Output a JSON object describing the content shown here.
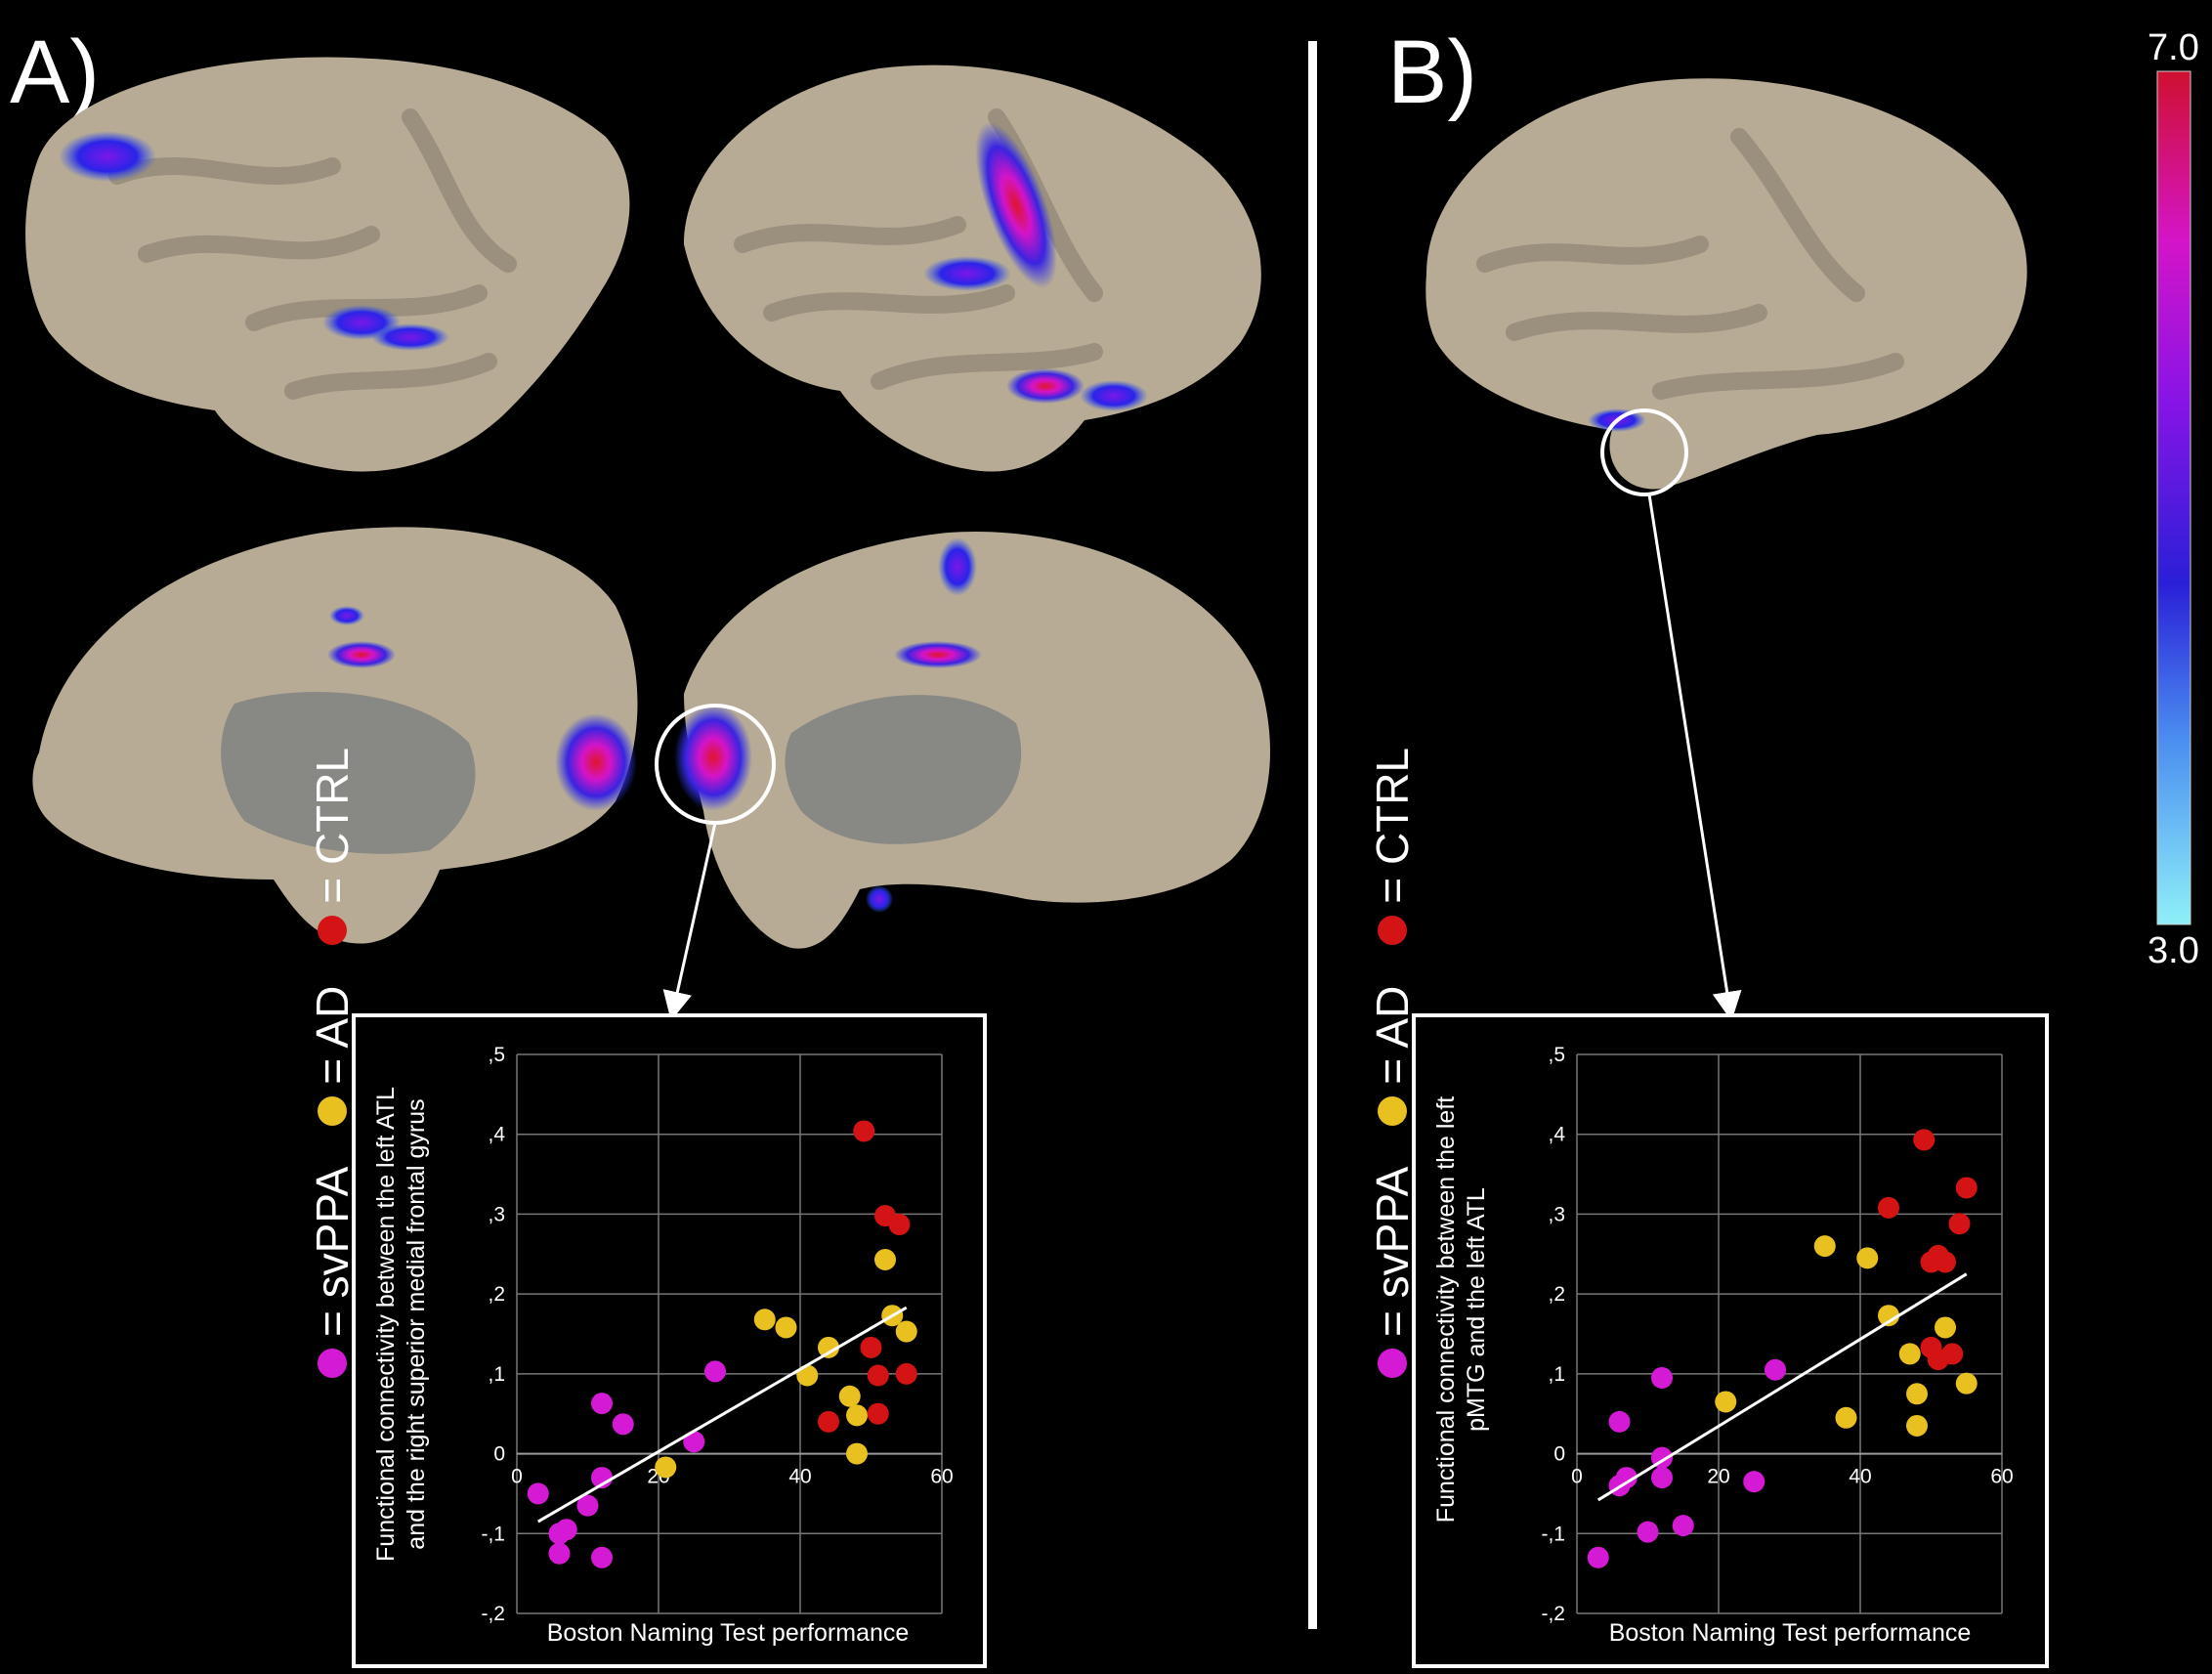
{
  "panels": {
    "a_label": "A)",
    "b_label": "B)"
  },
  "colorbar": {
    "max_label": "7.0",
    "min_label": "3.0",
    "vmin": 3.0,
    "vmax": 7.0,
    "colors": [
      "#8ef0f8",
      "#3a6cf0",
      "#2a1fd8",
      "#8a14e6",
      "#d414c8",
      "#d01030"
    ]
  },
  "legend": {
    "svppa": "= svPPA",
    "ad": "= AD",
    "ctrl": "= CTRL"
  },
  "group_colors": {
    "svPPA": "#d41ad4",
    "AD": "#e8c020",
    "CTRL": "#d41414"
  },
  "chart_data": [
    {
      "type": "scatter",
      "ylabel": "Functional connectivity between the left ATL and the right superior medial frontal gyrus",
      "xlabel": "Boston Naming Test performance",
      "xlim": [
        0,
        60
      ],
      "ylim": [
        -0.2,
        0.5
      ],
      "x_ticks": [
        "0",
        "20",
        "40",
        "60"
      ],
      "y_ticks": [
        ",5",
        ",4",
        ",3",
        ",2",
        ",1",
        "0",
        "-,1",
        "-,2"
      ],
      "grid": true,
      "series": [
        {
          "name": "svPPA",
          "points": [
            [
              3,
              -0.05
            ],
            [
              6,
              -0.1
            ],
            [
              7,
              -0.095
            ],
            [
              6,
              -0.125
            ],
            [
              10,
              -0.065
            ],
            [
              12,
              -0.03
            ],
            [
              12,
              0.063
            ],
            [
              15,
              0.037
            ],
            [
              12,
              -0.13
            ],
            [
              25,
              0.015
            ],
            [
              28,
              0.103
            ]
          ]
        },
        {
          "name": "AD",
          "points": [
            [
              21,
              -0.017
            ],
            [
              35,
              0.168
            ],
            [
              38,
              0.158
            ],
            [
              41,
              0.098
            ],
            [
              44,
              0.133
            ],
            [
              47,
              0.072
            ],
            [
              48,
              0.048
            ],
            [
              48,
              0.0
            ],
            [
              52,
              0.243
            ],
            [
              53,
              0.173
            ],
            [
              55,
              0.153
            ]
          ]
        },
        {
          "name": "CTRL",
          "points": [
            [
              49,
              0.404
            ],
            [
              52,
              0.298
            ],
            [
              54,
              0.287
            ],
            [
              44,
              0.04
            ],
            [
              50,
              0.133
            ],
            [
              51,
              0.098
            ],
            [
              51,
              0.05
            ],
            [
              55,
              0.1
            ]
          ]
        }
      ],
      "fit_line": [
        [
          3,
          -0.085
        ],
        [
          55,
          0.183
        ]
      ]
    },
    {
      "type": "scatter",
      "ylabel": "Functional connectivity between the left pMTG and the left ATL",
      "xlabel": "Boston Naming Test performance",
      "xlim": [
        0,
        60
      ],
      "ylim": [
        -0.2,
        0.5
      ],
      "x_ticks": [
        "0",
        "20",
        "40",
        "60"
      ],
      "y_ticks": [
        ",5",
        ",4",
        ",3",
        ",2",
        ",1",
        "0",
        "-,1",
        "-,2"
      ],
      "grid": true,
      "series": [
        {
          "name": "svPPA",
          "points": [
            [
              3,
              -0.13
            ],
            [
              6,
              0.04
            ],
            [
              6,
              -0.04
            ],
            [
              7,
              -0.03
            ],
            [
              10,
              -0.098
            ],
            [
              12,
              0.095
            ],
            [
              12,
              -0.005
            ],
            [
              12,
              -0.03
            ],
            [
              15,
              -0.09
            ],
            [
              25,
              -0.035
            ],
            [
              28,
              0.105
            ]
          ]
        },
        {
          "name": "AD",
          "points": [
            [
              21,
              0.065
            ],
            [
              35,
              0.26
            ],
            [
              38,
              0.045
            ],
            [
              41,
              0.245
            ],
            [
              44,
              0.173
            ],
            [
              47,
              0.125
            ],
            [
              48,
              0.075
            ],
            [
              48,
              0.035
            ],
            [
              52,
              0.158
            ],
            [
              55,
              0.088
            ]
          ]
        },
        {
          "name": "CTRL",
          "points": [
            [
              44,
              0.308
            ],
            [
              49,
              0.393
            ],
            [
              50,
              0.24
            ],
            [
              51,
              0.248
            ],
            [
              52,
              0.24
            ],
            [
              54,
              0.288
            ],
            [
              55,
              0.333
            ],
            [
              50,
              0.133
            ],
            [
              51,
              0.118
            ],
            [
              53,
              0.125
            ]
          ]
        }
      ],
      "fit_line": [
        [
          3,
          -0.058
        ],
        [
          55,
          0.225
        ]
      ]
    }
  ]
}
